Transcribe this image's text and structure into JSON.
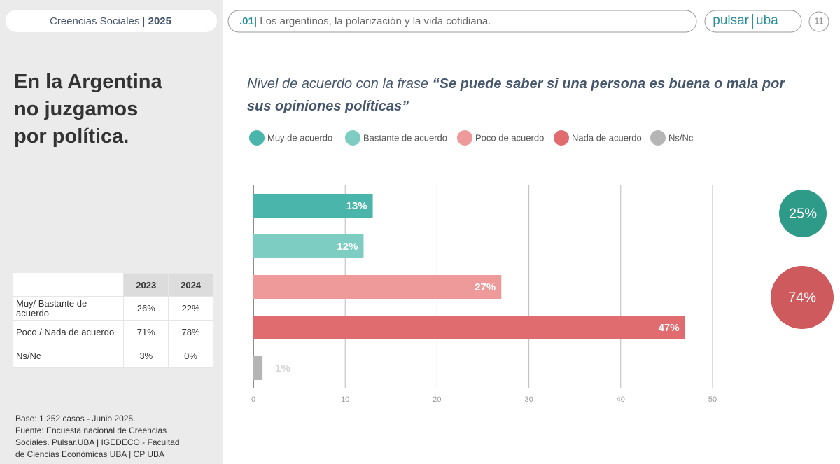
{
  "header": {
    "section": "Creencias Sociales |",
    "year": "2025",
    "chapter_number": ".01|",
    "chapter_title": "Los argentinos, la polarización y la vida cotidiana.",
    "logo_left": "pulsar",
    "logo_right": "uba",
    "page": "11"
  },
  "headline": [
    "En la Argentina",
    "no juzgamos",
    "por política."
  ],
  "table": {
    "columns": [
      "2023",
      "2024"
    ],
    "rows": [
      {
        "label": "Muy/ Bastante de acuerdo",
        "cells": [
          "26%",
          "22%"
        ]
      },
      {
        "label": "Poco / Nada de acuerdo",
        "cells": [
          "71%",
          "78%"
        ]
      },
      {
        "label": "Ns/Nc",
        "cells": [
          "3%",
          "0%"
        ]
      }
    ]
  },
  "footnote": [
    "Base: 1.252 casos - Junio 2025.",
    "Fuente: Encuesta nacional de Creencias",
    "Sociales. Pulsar.UBA | IGEDECO - Facultad",
    "de Ciencias Económicas UBA | CP UBA"
  ],
  "chart_data": {
    "type": "bar",
    "orientation": "horizontal",
    "title": "Nivel de acuerdo con la frase",
    "title_quote": "“Se puede saber si una persona es buena o mala por sus opiniones políticas”",
    "categories": [
      "Muy de acuerdo",
      "Bastante de acuerdo",
      "Poco de acuerdo",
      "Nada de acuerdo",
      "Ns/Nc"
    ],
    "colors": [
      "#4ab5aa",
      "#7ecdc3",
      "#ef9a9a",
      "#e06c70",
      "#b5b5b5"
    ],
    "values": [
      13,
      12,
      27,
      47,
      1
    ],
    "value_labels": [
      "13%",
      "12%",
      "27%",
      "47%",
      "1%"
    ],
    "xlim": [
      0,
      50
    ],
    "xticks": [
      0,
      10,
      20,
      30,
      40,
      50
    ],
    "grid": true,
    "summary": {
      "values": [
        25,
        74
      ],
      "value_labels": [
        "25%",
        "74%"
      ],
      "colors": [
        "#2e9a88",
        "#cf5a5e"
      ]
    }
  }
}
